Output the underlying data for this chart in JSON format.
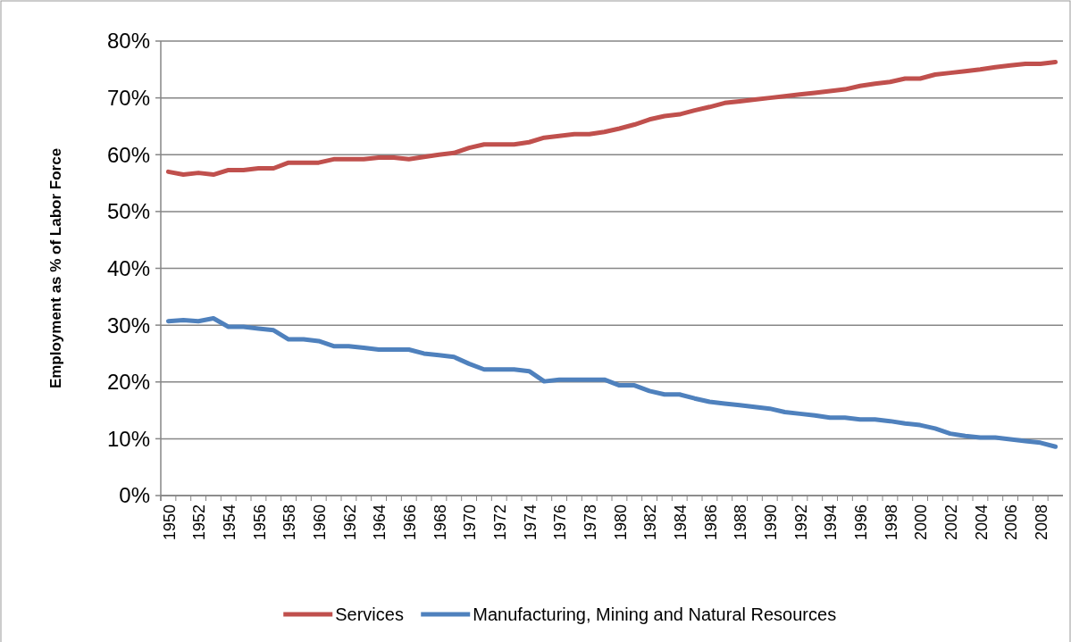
{
  "chart_data": {
    "type": "line",
    "ylabel": "Employment as % of Labor Force",
    "categories": [
      "1950",
      null,
      "1952",
      null,
      "1954",
      null,
      "1956",
      null,
      "1958",
      null,
      "1960",
      null,
      "1962",
      null,
      "1964",
      null,
      "1966",
      null,
      "1968",
      null,
      "1970",
      null,
      "1972",
      null,
      "1974",
      null,
      "1976",
      null,
      "1978",
      null,
      "1980",
      null,
      "1982",
      null,
      "1984",
      null,
      "1986",
      null,
      "1988",
      null,
      "1990",
      null,
      "1992",
      null,
      "1994",
      null,
      "1996",
      null,
      "1998",
      null,
      "2000",
      null,
      "2002",
      null,
      "2004",
      null,
      "2006",
      null,
      "2008",
      null
    ],
    "series": [
      {
        "name": "Services",
        "color": "#c0504d",
        "values": [
          57.0,
          56.5,
          56.8,
          56.5,
          57.3,
          57.3,
          57.6,
          57.6,
          58.6,
          58.6,
          58.6,
          59.2,
          59.2,
          59.2,
          59.5,
          59.5,
          59.2,
          59.6,
          60.0,
          60.3,
          61.2,
          61.8,
          61.8,
          61.8,
          62.2,
          63.0,
          63.3,
          63.6,
          63.6,
          64.0,
          64.6,
          65.3,
          66.2,
          66.8,
          67.1,
          67.8,
          68.4,
          69.1,
          69.4,
          69.7,
          70.0,
          70.3,
          70.6,
          70.9,
          71.2,
          71.5,
          72.1,
          72.5,
          72.8,
          73.4,
          73.4,
          74.1,
          74.4,
          74.7,
          75.0,
          75.4,
          75.7,
          76.0,
          76.0,
          76.3
        ]
      },
      {
        "name": "Manufacturing, Mining and Natural Resources",
        "color": "#4f81bd",
        "values": [
          30.7,
          30.9,
          30.7,
          31.2,
          29.7,
          29.7,
          29.4,
          29.1,
          27.5,
          27.5,
          27.2,
          26.3,
          26.3,
          26.0,
          25.7,
          25.7,
          25.7,
          25.0,
          24.7,
          24.4,
          23.2,
          22.2,
          22.2,
          22.2,
          21.9,
          20.1,
          20.4,
          20.4,
          20.4,
          20.4,
          19.4,
          19.4,
          18.4,
          17.8,
          17.8,
          17.1,
          16.5,
          16.2,
          15.9,
          15.6,
          15.3,
          14.7,
          14.4,
          14.1,
          13.7,
          13.7,
          13.4,
          13.4,
          13.1,
          12.7,
          12.4,
          11.8,
          10.9,
          10.5,
          10.2,
          10.2,
          9.9,
          9.6,
          9.3,
          8.6
        ]
      }
    ],
    "ylim": [
      0,
      80
    ],
    "yticks": [
      {
        "value": 0,
        "label": "0%"
      },
      {
        "value": 10,
        "label": "10%"
      },
      {
        "value": 20,
        "label": "20%"
      },
      {
        "value": 30,
        "label": "30%"
      },
      {
        "value": 40,
        "label": "40%"
      },
      {
        "value": 50,
        "label": "50%"
      },
      {
        "value": 60,
        "label": "60%"
      },
      {
        "value": 70,
        "label": "70%"
      },
      {
        "value": 80,
        "label": "80%"
      }
    ],
    "grid": "y",
    "legend": "bottom",
    "marker": "none",
    "line_style": "solid"
  }
}
